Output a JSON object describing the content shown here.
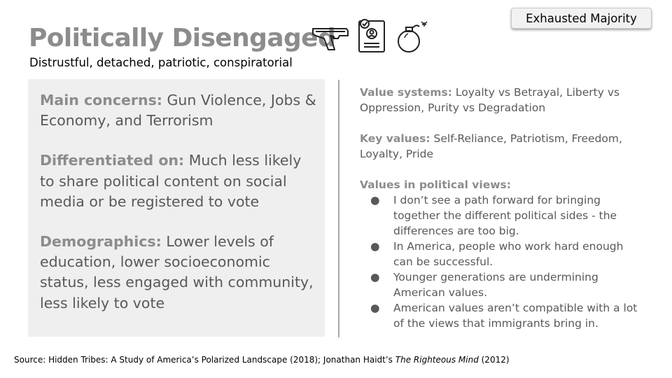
{
  "header": {
    "title": "Politically Disengaged",
    "subtitle": "Distrustful, detached, patriotic, conspiratorial",
    "badge": "Exhausted Majority",
    "icons": [
      "gun-icon",
      "profile-document-icon",
      "bomb-icon"
    ]
  },
  "left_panel": {
    "main_concerns": {
      "label": "Main concerns:",
      "text": " Gun Violence, Jobs & Economy, and Terrorism"
    },
    "differentiated_on": {
      "label": "Differentiated on:",
      "text": " Much less likely to share political content on social media or be registered to vote"
    },
    "demographics": {
      "label": "Demographics:",
      "text": " Lower levels of education, lower socioeconomic status, less engaged with community, less likely to vote"
    }
  },
  "right_panel": {
    "value_systems": {
      "label": "Value systems:",
      "text": " Loyalty vs Betrayal, Liberty vs Oppression, Purity vs Degradation"
    },
    "key_values": {
      "label": "Key values:",
      "text": " Self-Reliance, Patriotism, Freedom, Loyalty, Pride"
    },
    "political_views": {
      "label": "Values in political views:",
      "bullet": "●",
      "items": [
        "I don’t see a path forward for bringing together the different political sides - the differences are too big.",
        "In America, people who work hard enough can be successful.",
        "Younger generations are undermining American values.",
        "American values aren’t compatible with a lot of the views that immigrants bring in."
      ]
    }
  },
  "source": {
    "prefix": "Source: Hidden Tribes: A Study of America’s Polarized Landscape (2018); Jonathan Haidt’s ",
    "italic": "The Righteous Mind",
    "suffix": " (2012)"
  },
  "colors": {
    "heading_gray": "#8c8c8c",
    "body_gray": "#595959",
    "panel_bg": "#efefef",
    "divider": "#a6a6a6"
  }
}
